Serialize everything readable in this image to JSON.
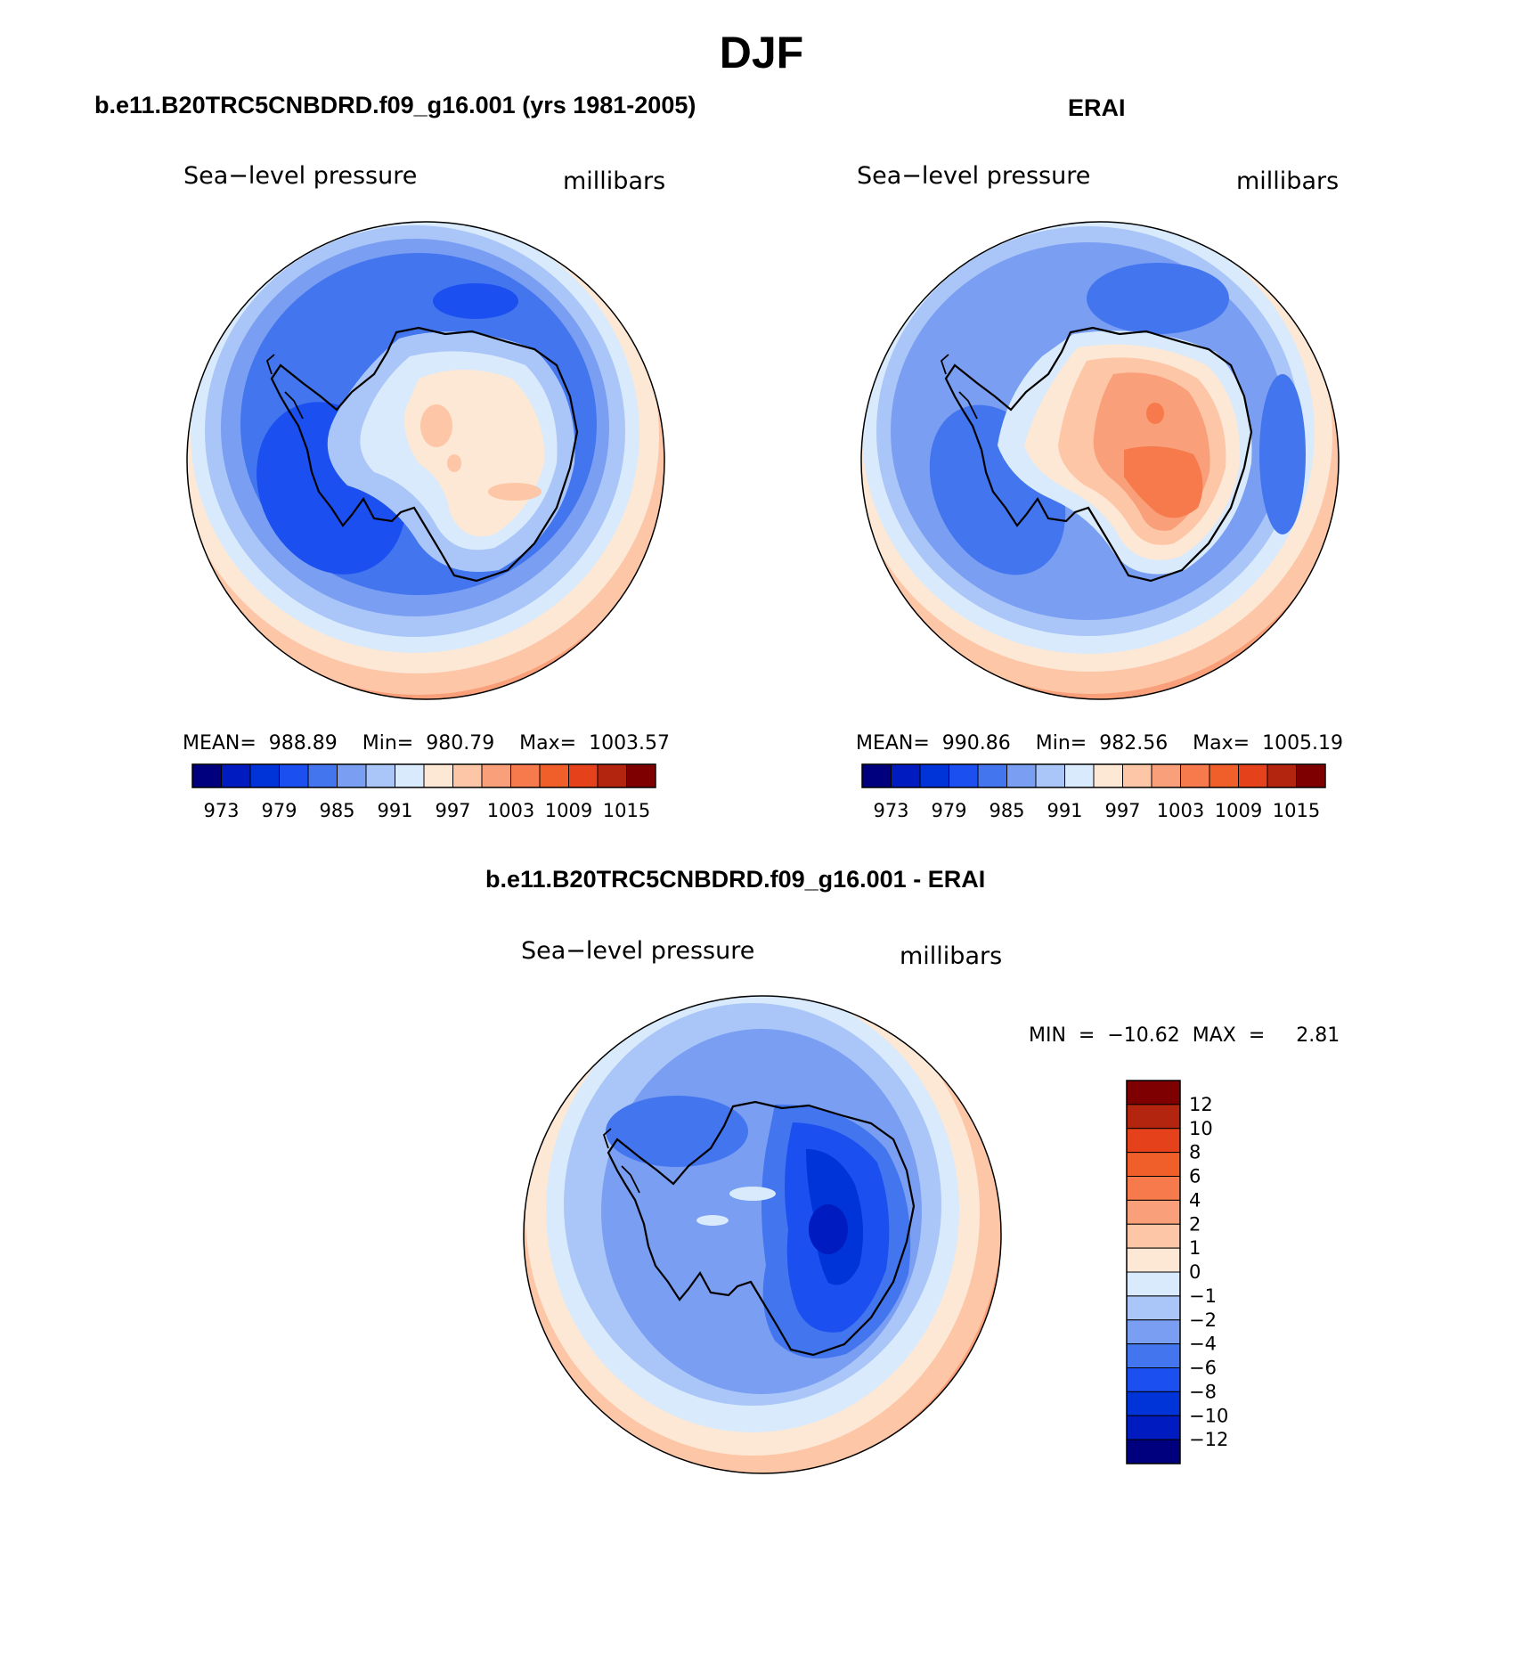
{
  "figure": {
    "title": "DJF",
    "colors": {
      "sequential": [
        "#00007f",
        "#001bbf",
        "#0034d9",
        "#1c4ff0",
        "#4275ee",
        "#7a9ef2",
        "#aac6f8",
        "#d8eafb",
        "#fde8d6",
        "#fcc6a7",
        "#f9a07a",
        "#f77a4c",
        "#f05f2a",
        "#e5411a",
        "#b3250e",
        "#7f0000"
      ],
      "difference": [
        "#00007f",
        "#001bbf",
        "#0034d9",
        "#1c4ff0",
        "#4275ee",
        "#7a9ef2",
        "#aac6f8",
        "#d8eafb",
        "#fde8d6",
        "#fcc6a7",
        "#f9a07a",
        "#f77a4c",
        "#f05f2a",
        "#e5411a",
        "#b3250e",
        "#7f0000"
      ],
      "coastline": "#000000"
    }
  },
  "panels": [
    {
      "id": "model",
      "title": "b.e11.B20TRC5CNBDRD.f09_g16.001 (yrs 1981-2005)",
      "variable": "Sea−level pressure",
      "units": "millibars",
      "stats": "MEAN=  988.89    Min=  980.79    Max=  1003.57",
      "colorbar_labels": [
        "973",
        "979",
        "985",
        "991",
        "997",
        "1003",
        "1009",
        "1015"
      ]
    },
    {
      "id": "obs",
      "title": "ERAI",
      "variable": "Sea−level pressure",
      "units": "millibars",
      "stats": "MEAN=  990.86    Min=  982.56    Max=  1005.19",
      "colorbar_labels": [
        "973",
        "979",
        "985",
        "991",
        "997",
        "1003",
        "1009",
        "1015"
      ]
    },
    {
      "id": "diff",
      "title": "b.e11.B20TRC5CNBDRD.f09_g16.001 - ERAI",
      "variable": "Sea−level pressure",
      "units": "millibars",
      "stats": "MIN  =  −10.62  MAX  =     2.81",
      "colorbar_labels": [
        "12",
        "10",
        "8",
        "6",
        "4",
        "2",
        "1",
        "0",
        "−1",
        "−2",
        "−4",
        "−6",
        "−8",
        "−10",
        "−12"
      ]
    }
  ]
}
